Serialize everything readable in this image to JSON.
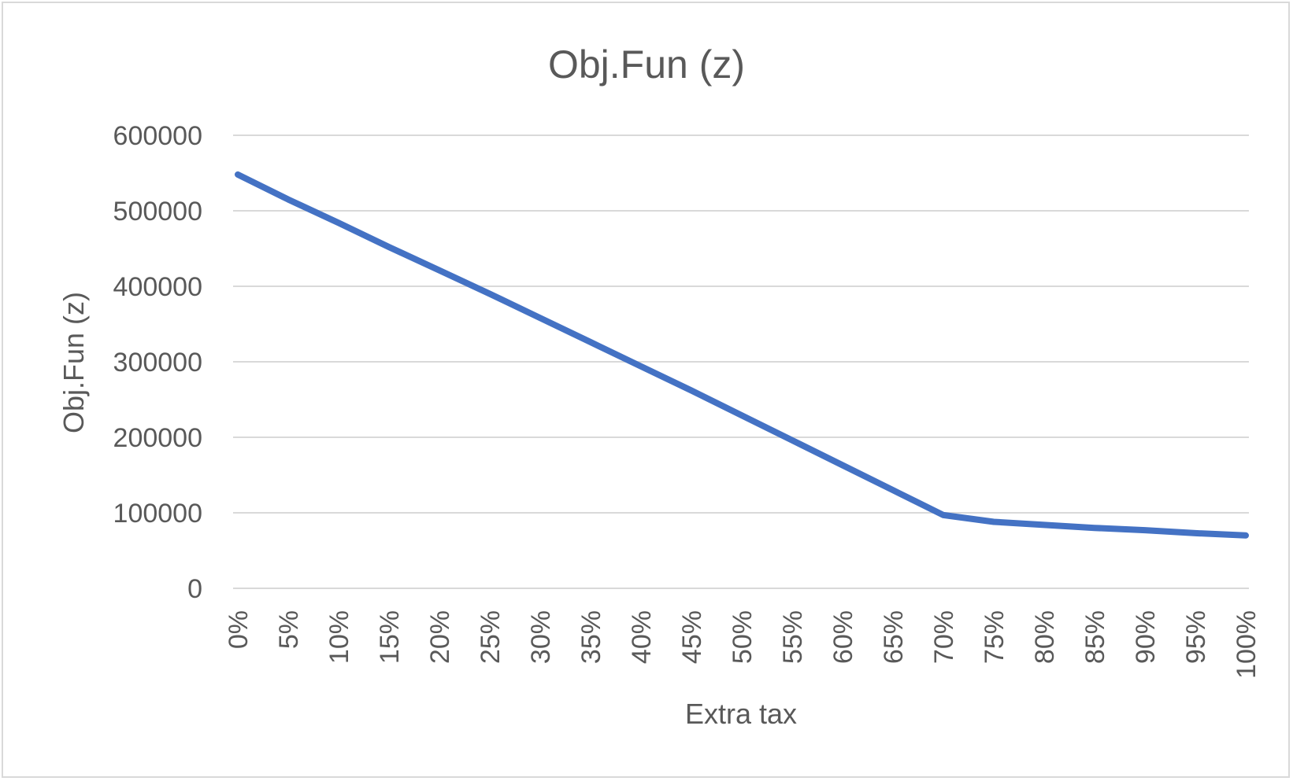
{
  "chart_data": {
    "type": "line",
    "title": "Obj.Fun (z)",
    "xlabel": "Extra tax",
    "ylabel": "Obj.Fun (z)",
    "categories": [
      "0%",
      "5%",
      "10%",
      "15%",
      "20%",
      "25%",
      "30%",
      "35%",
      "40%",
      "45%",
      "50%",
      "55%",
      "60%",
      "65%",
      "70%",
      "75%",
      "80%",
      "85%",
      "90%",
      "95%",
      "100%"
    ],
    "x_tick_labels": [
      "0%",
      "5%",
      "10%",
      "15%",
      "20%",
      "25%",
      "30%",
      "35%",
      "40%",
      "45%",
      "50%",
      "55%",
      "60%",
      "65%",
      "70%",
      "75%",
      "80%",
      "85%",
      "90%",
      "95%",
      "100%"
    ],
    "y_tick_labels": [
      "0",
      "100000",
      "200000",
      "300000",
      "400000",
      "500000",
      "600000"
    ],
    "ylim": [
      0,
      600000
    ],
    "yticks": [
      0,
      100000,
      200000,
      300000,
      400000,
      500000,
      600000
    ],
    "grid": "horizontal",
    "series": [
      {
        "name": "",
        "color": "#4472c4",
        "values": [
          548000,
          515000,
          484000,
          452000,
          421000,
          390000,
          358000,
          326000,
          294000,
          262000,
          229000,
          196000,
          163000,
          130000,
          97000,
          88000,
          84000,
          80000,
          77000,
          73000,
          70000
        ]
      }
    ],
    "legend": "none"
  }
}
